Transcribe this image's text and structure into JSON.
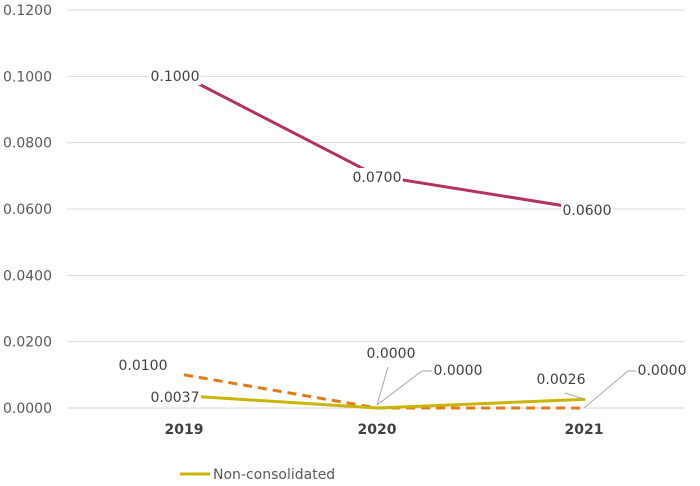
{
  "chart_data": {
    "type": "line",
    "categories": [
      "2019",
      "2020",
      "2021"
    ],
    "ylim": [
      0,
      0.12
    ],
    "yticks": [
      "0.0000",
      "0.0200",
      "0.0400",
      "0.0600",
      "0.0800",
      "0.1000",
      "0.1200"
    ],
    "grid": true,
    "legend_position": "bottom-left",
    "series": [
      {
        "key": "s1",
        "values": [
          0.1,
          0.07,
          0.06
        ],
        "labels": [
          "0.1000",
          "0.0700",
          "0.0600"
        ],
        "color": "#b5325a",
        "dash": false
      },
      {
        "key": "s2",
        "values": [
          0.01,
          0.0,
          0.0
        ],
        "labels": [
          "0.0100",
          "0.0000",
          "0.0000"
        ],
        "color": "#e07b1a",
        "dash": true
      },
      {
        "key": "s3",
        "name": "Non-consolidated",
        "values": [
          0.0037,
          0.0,
          0.0026
        ],
        "labels": [
          "0.0037",
          "0.0000",
          "0.0026"
        ],
        "color": "#c9b400",
        "dash": false
      }
    ]
  }
}
